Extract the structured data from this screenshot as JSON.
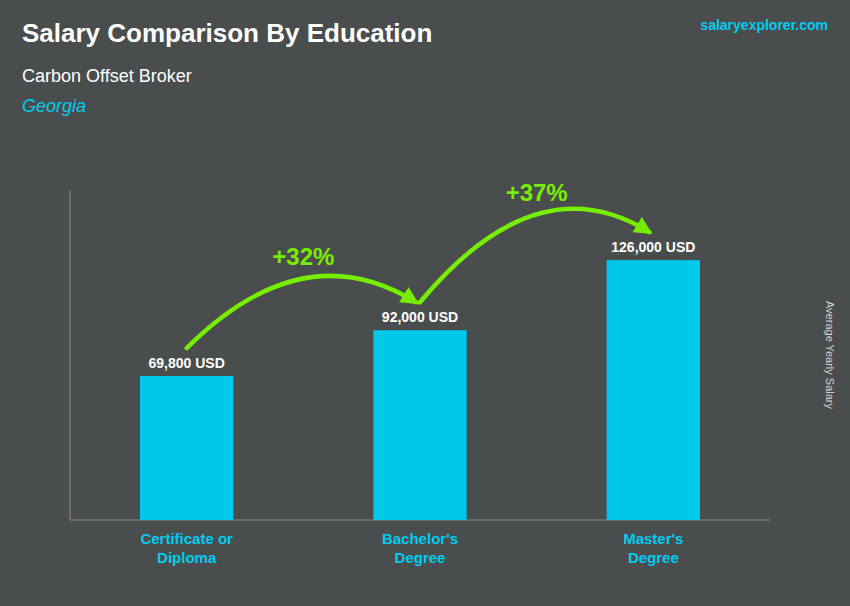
{
  "chart_data": {
    "type": "bar",
    "title": "Salary Comparison By Education",
    "subtitle": "Carbon Offset Broker",
    "location": "Georgia",
    "source": "salaryexplorer.com",
    "ylabel": "Average Yearly Salary",
    "categories": [
      "Certificate or\nDiploma",
      "Bachelor's\nDegree",
      "Master's\nDegree"
    ],
    "values": [
      69800,
      92000,
      126000
    ],
    "value_labels": [
      "69,800 USD",
      "92,000 USD",
      "126,000 USD"
    ],
    "data_labels": true,
    "annotations": [
      "+32%",
      "+37%"
    ],
    "color": "#00c8e8",
    "ylim": [
      0,
      160000
    ],
    "grid": false,
    "tick_labels": "x"
  }
}
